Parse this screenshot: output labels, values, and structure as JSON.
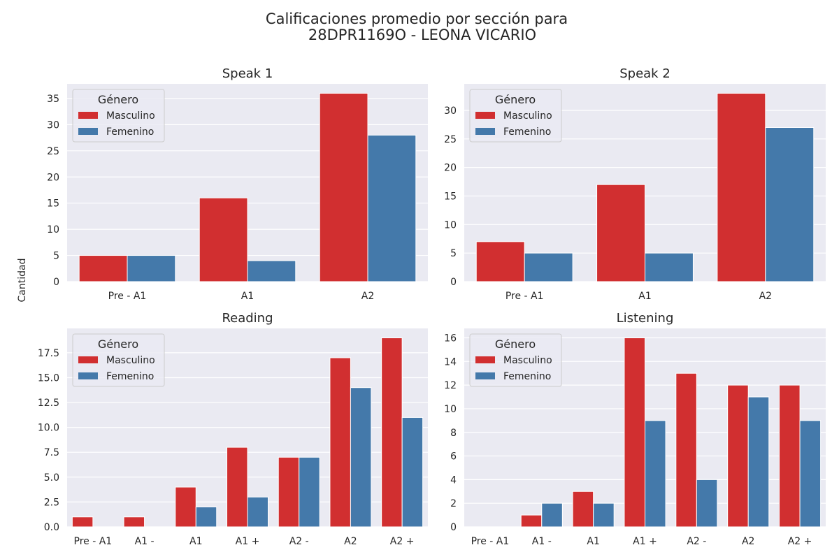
{
  "figure": {
    "title_line1": "Calificaciones promedio por sección para",
    "title_line2": "28DPR1169O - LEONA VICARIO",
    "ylabel": "Cantidad"
  },
  "colors": {
    "panel_bg": "#eaeaf2",
    "grid": "#ffffff",
    "Masculino": "#d12f30",
    "Femenino": "#4479aa"
  },
  "chart_data": [
    {
      "type": "bar",
      "title": "Speak 1",
      "categories": [
        "Pre - A1",
        "A1",
        "A2"
      ],
      "series": [
        {
          "name": "Masculino",
          "values": [
            5,
            16,
            36
          ]
        },
        {
          "name": "Femenino",
          "values": [
            5,
            4,
            28
          ]
        }
      ],
      "ylim": [
        0,
        37.8
      ],
      "yticks": [
        0,
        5,
        10,
        15,
        20,
        25,
        30,
        35
      ],
      "ytick_labels": [
        "0",
        "5",
        "10",
        "15",
        "20",
        "25",
        "30",
        "35"
      ],
      "legend": {
        "title": "Género",
        "position": "top-left"
      },
      "grid": true
    },
    {
      "type": "bar",
      "title": "Speak 2",
      "categories": [
        "Pre - A1",
        "A1",
        "A2"
      ],
      "series": [
        {
          "name": "Masculino",
          "values": [
            7,
            17,
            33
          ]
        },
        {
          "name": "Femenino",
          "values": [
            5,
            5,
            27
          ]
        }
      ],
      "ylim": [
        0,
        34.65
      ],
      "yticks": [
        0,
        5,
        10,
        15,
        20,
        25,
        30
      ],
      "ytick_labels": [
        "0",
        "5",
        "10",
        "15",
        "20",
        "25",
        "30"
      ],
      "legend": {
        "title": "Género",
        "position": "top-left"
      },
      "grid": true
    },
    {
      "type": "bar",
      "title": "Reading",
      "categories": [
        "Pre - A1",
        "A1 -",
        "A1",
        "A1 +",
        "A2 -",
        "A2",
        "A2 +"
      ],
      "series": [
        {
          "name": "Masculino",
          "values": [
            1,
            1,
            4,
            8,
            7,
            17,
            19
          ]
        },
        {
          "name": "Femenino",
          "values": [
            0,
            0,
            2,
            3,
            7,
            14,
            11
          ]
        }
      ],
      "ylim": [
        0,
        19.95
      ],
      "yticks": [
        0,
        2.5,
        5,
        7.5,
        10,
        12.5,
        15,
        17.5
      ],
      "ytick_labels": [
        "0.0",
        "2.5",
        "5.0",
        "7.5",
        "10.0",
        "12.5",
        "15.0",
        "17.5"
      ],
      "legend": {
        "title": "Género",
        "position": "top-left"
      },
      "grid": true
    },
    {
      "type": "bar",
      "title": "Listening",
      "categories": [
        "Pre - A1",
        "A1 -",
        "A1",
        "A1 +",
        "A2 -",
        "A2",
        "A2 +"
      ],
      "series": [
        {
          "name": "Masculino",
          "values": [
            0,
            1,
            3,
            16,
            13,
            12,
            12
          ]
        },
        {
          "name": "Femenino",
          "values": [
            0,
            2,
            2,
            9,
            4,
            11,
            9
          ]
        }
      ],
      "ylim": [
        0,
        16.8
      ],
      "yticks": [
        0,
        2,
        4,
        6,
        8,
        10,
        12,
        14,
        16
      ],
      "ytick_labels": [
        "0",
        "2",
        "4",
        "6",
        "8",
        "10",
        "12",
        "14",
        "16"
      ],
      "legend": {
        "title": "Género",
        "position": "top-left"
      },
      "grid": true
    }
  ]
}
